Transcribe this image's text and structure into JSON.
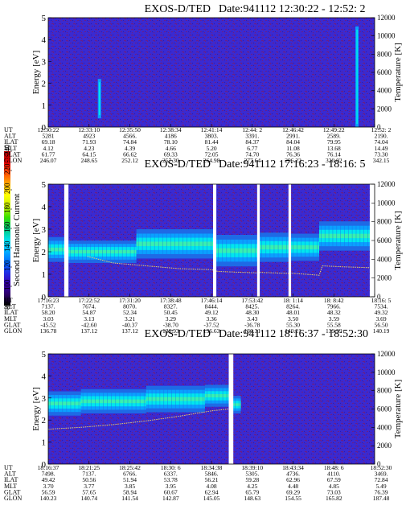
{
  "colorbar": {
    "label": "Second Harmonic Current",
    "ticks": [
      "80",
      "100",
      "120",
      "140",
      "160",
      "180",
      "200",
      "220",
      "240"
    ],
    "range": [
      80,
      240
    ],
    "colors": [
      "#000000",
      "#2b0066",
      "#3a00b4",
      "#1f2fe6",
      "#0072ff",
      "#00b4ff",
      "#00e0e8",
      "#00c878",
      "#38e000",
      "#c8f000",
      "#ffff00",
      "#ffb000",
      "#ff5000",
      "#e00000",
      "#b00000"
    ]
  },
  "colors": {
    "background_field": "#3a2ad2",
    "noise_speckle": "#7a1a6a",
    "band_dark": "#1e6ae6",
    "band_mid": "#0aa0ff",
    "band_core": "#00e6ee",
    "band_hot": "#38f0b0",
    "temperature_trace": "#e9d36a",
    "gap": "#ffffff"
  },
  "row_labels": [
    "UT",
    "ALT",
    "ILAT",
    "MLT",
    "GLAT",
    "GLON"
  ],
  "chart_data": [
    {
      "type": "heatmap",
      "title_left": "EXOS-D/TED",
      "title_right": "Date:941112  12:30:22 - 12:52: 2",
      "ylabel": "Energy [eV]",
      "y2label": "Temperature [K]",
      "ylim": [
        0,
        5
      ],
      "y2lim": [
        0,
        12000
      ],
      "yticks": [
        "0",
        "1",
        "2",
        "3",
        "4",
        "5"
      ],
      "y2ticks": [
        "0",
        "2000",
        "4000",
        "6000",
        "8000",
        "10000",
        "12000"
      ],
      "gaps": [],
      "bands": [],
      "spikes": [
        {
          "t": 0.157,
          "e_from": 0.4,
          "e_to": 2.2
        },
        {
          "t": 0.946,
          "e_from": 0.0,
          "e_to": 4.6
        }
      ],
      "temperature_trace": [],
      "ephemeris": {
        "UT": [
          "12:30:22",
          "12:33:10",
          "12:35:50",
          "12:38:34",
          "12:41:14",
          "12:44: 2",
          "12:46:42",
          "12:49:22",
          "12:52: 2"
        ],
        "ALT": [
          "5281",
          "4923",
          "4566.",
          "4186",
          "3803.",
          "3391.",
          "2991.",
          "2589.",
          "2190."
        ],
        "ILAT": [
          "69.18",
          "71.93",
          "74.84",
          "78.10",
          "81.44",
          "84.37",
          "84.04",
          "79.95",
          "74.04"
        ],
        "MLT": [
          "4.12",
          "4.23",
          "4.39",
          "4.66",
          "5.20",
          "6.77",
          "11.08",
          "13.68",
          "14.49"
        ],
        "GLAT": [
          "61.77",
          "64.15",
          "66.62",
          "69.33",
          "72.05",
          "74.70",
          "76.36",
          "76.14",
          "73.30"
        ],
        "GLON": [
          "246.07",
          "248.65",
          "252.12",
          "257.30",
          "264.98",
          "277.64",
          "296.22",
          "320.02",
          "342.15"
        ]
      }
    },
    {
      "type": "heatmap",
      "title_left": "EXOS-D/TED",
      "title_right": "Date:941112  17:16:23 - 18:16: 5",
      "ylabel": "Energy [eV]",
      "y2label": "Temperature [K]",
      "ylim": [
        0,
        5
      ],
      "y2lim": [
        0,
        12000
      ],
      "yticks": [
        "0",
        "1",
        "2",
        "3",
        "4",
        "5"
      ],
      "y2ticks": [
        "0",
        "2000",
        "4000",
        "6000",
        "8000",
        "10000",
        "12000"
      ],
      "gaps": [
        [
          0.049,
          0.062
        ],
        [
          0.505,
          0.515
        ],
        [
          0.64,
          0.648
        ],
        [
          0.736,
          0.744
        ],
        [
          0.985,
          1.0
        ]
      ],
      "bands": [
        {
          "t_from": 0.0,
          "t_to": 0.049,
          "e_center": 2.1,
          "e_half": 0.55
        },
        {
          "t_from": 0.062,
          "t_to": 0.27,
          "e_center": 2.0,
          "e_half": 0.5
        },
        {
          "t_from": 0.27,
          "t_to": 0.505,
          "e_center": 2.35,
          "e_half": 0.65
        },
        {
          "t_from": 0.515,
          "t_to": 0.64,
          "e_center": 2.05,
          "e_half": 0.7
        },
        {
          "t_from": 0.648,
          "t_to": 0.736,
          "e_center": 2.2,
          "e_half": 0.65
        },
        {
          "t_from": 0.744,
          "t_to": 0.83,
          "e_center": 2.2,
          "e_half": 0.6
        },
        {
          "t_from": 0.83,
          "t_to": 0.985,
          "e_center": 2.7,
          "e_half": 0.65
        }
      ],
      "spikes": [],
      "temperature_trace": [
        [
          0.12,
          4300
        ],
        [
          0.2,
          3600
        ],
        [
          0.3,
          3300
        ],
        [
          0.4,
          3000
        ],
        [
          0.5,
          2900
        ],
        [
          0.52,
          2700
        ],
        [
          0.6,
          2600
        ],
        [
          0.64,
          2550
        ],
        [
          0.65,
          2600
        ],
        [
          0.73,
          2500
        ],
        [
          0.75,
          2500
        ],
        [
          0.83,
          2300
        ],
        [
          0.84,
          3300
        ],
        [
          0.9,
          3200
        ],
        [
          0.985,
          3100
        ]
      ],
      "ephemeris": {
        "UT": [
          "17:16:23",
          "17:22:52",
          "17:31:20",
          "17:38:48",
          "17:46:14",
          "17:53:42",
          "18: 1:14",
          "18: 8:42",
          "18:16: 5"
        ],
        "ALT": [
          "7137.",
          "7674.",
          "8070.",
          "8327.",
          "8444.",
          "8425.",
          "8264.",
          "7966.",
          "7534."
        ],
        "ILAT": [
          "58.20",
          "54.87",
          "52.34",
          "50.45",
          "49.12",
          "48.30",
          "48.01",
          "48.32",
          "49.32"
        ],
        "MLT": [
          "3.03",
          "3.13",
          "3.21",
          "3.29",
          "3.36",
          "3.43",
          "3.50",
          "3.59",
          "3.69"
        ],
        "GLAT": [
          "-45.52",
          "-42.60",
          "-40.37",
          "-38.70",
          "-37.52",
          "-36.78",
          "55.30",
          "55.58",
          "56.50"
        ],
        "GLON": [
          "136.78",
          "137.12",
          "137.12",
          "136.93",
          "136.63",
          "136.31",
          "140.21",
          "139.99",
          "140.19"
        ]
      }
    },
    {
      "type": "heatmap",
      "title_left": "EXOS-D/TED",
      "title_right": "Date:941112  18:16:37 - 18:52:30",
      "ylabel": "Energy [eV]",
      "y2label": "Temperature [K]",
      "ylim": [
        0,
        5
      ],
      "y2lim": [
        0,
        12000
      ],
      "yticks": [
        "0",
        "1",
        "2",
        "3",
        "4",
        "5"
      ],
      "y2ticks": [
        "0",
        "2000",
        "4000",
        "6000",
        "8000",
        "10000",
        "12000"
      ],
      "gaps": [
        [
          0.553,
          0.567
        ]
      ],
      "bands": [
        {
          "t_from": 0.0,
          "t_to": 0.1,
          "e_center": 2.75,
          "e_half": 0.55
        },
        {
          "t_from": 0.1,
          "t_to": 0.3,
          "e_center": 2.85,
          "e_half": 0.55
        },
        {
          "t_from": 0.3,
          "t_to": 0.48,
          "e_center": 2.95,
          "e_half": 0.6
        },
        {
          "t_from": 0.48,
          "t_to": 0.553,
          "e_center": 3.1,
          "e_half": 0.5
        },
        {
          "t_from": 0.567,
          "t_to": 0.59,
          "e_center": 2.7,
          "e_half": 0.4
        }
      ],
      "spikes": [],
      "temperature_trace": [
        [
          0.0,
          3800
        ],
        [
          0.1,
          4000
        ],
        [
          0.2,
          4300
        ],
        [
          0.3,
          4700
        ],
        [
          0.4,
          5200
        ],
        [
          0.5,
          5800
        ],
        [
          0.553,
          6000
        ]
      ],
      "ephemeris": {
        "UT": [
          "18:16:37",
          "18:21:25",
          "18:25:42",
          "18:30: 6",
          "18:34:38",
          "18:39:10",
          "18:43:34",
          "18:48: 6",
          "18:52:30"
        ],
        "ALT": [
          "7498.",
          "7137.",
          "6766.",
          "6337.",
          "5846.",
          "5305.",
          "4736.",
          "4110.",
          "3469."
        ],
        "ILAT": [
          "49.42",
          "50.56",
          "51.94",
          "53.78",
          "56.21",
          "59.28",
          "62.96",
          "67.59",
          "72.84"
        ],
        "MLT": [
          "3.70",
          "3.77",
          "3.85",
          "3.95",
          "4.08",
          "4.25",
          "4.48",
          "4.85",
          "5.49"
        ],
        "GLAT": [
          "56.59",
          "57.65",
          "58.94",
          "60.67",
          "62.94",
          "65.79",
          "69.29",
          "73.03",
          "76.39"
        ],
        "GLON": [
          "140.23",
          "140.74",
          "141.54",
          "142.87",
          "145.05",
          "148.63",
          "154.55",
          "165.82",
          "187.48"
        ]
      }
    }
  ]
}
